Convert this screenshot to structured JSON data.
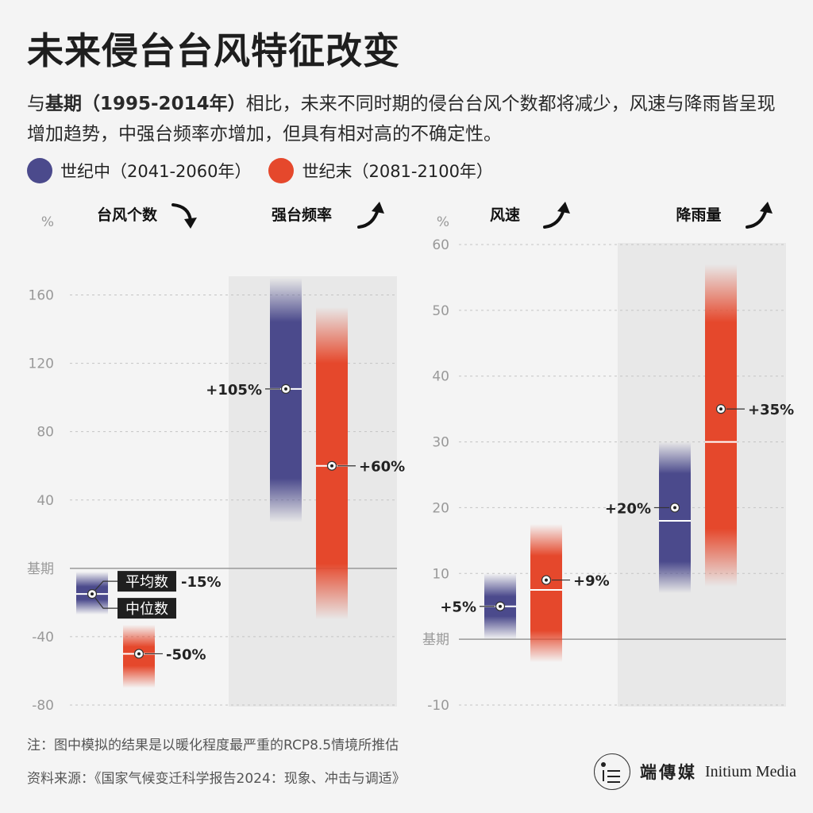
{
  "title": "未来侵台台风特征改变",
  "subtitle": {
    "part1": "与",
    "bold": "基期（1995-2014年）",
    "part2": "相比，未来不同时期的侵台台风个数都将减少，风速与降雨皆呈现增加趋势，中强台频率亦增加，但具有相对高的不确定性。"
  },
  "legend": [
    {
      "label": "世纪中（2041-2060年）",
      "color": "#4b4a8c"
    },
    {
      "label": "世纪末（2081-2100年）",
      "color": "#e5482c"
    }
  ],
  "note": "注：图中模拟的结果是以暖化程度最严重的RCP8.5情境所推估",
  "source": "资料来源：《国家气候变迁科学报告2024：现象、冲击与调适》",
  "brand": {
    "cn": "端傳媒",
    "en": "Initium Media"
  },
  "chart_data": [
    {
      "type": "range",
      "unit_label": "%",
      "baseline_label": "基期",
      "ylim": [
        -80,
        170
      ],
      "yticks": [
        -80,
        -40,
        0,
        40,
        80,
        120,
        160
      ],
      "tick_labels": [
        "-80",
        "-40",
        "基期",
        "40",
        "80",
        "120",
        "160"
      ],
      "groups": [
        {
          "label": "台风个数",
          "trend": "down",
          "shaded": false,
          "series": [
            {
              "period": "世纪中",
              "mean": -15,
              "median": -15,
              "low": -27,
              "high": -2,
              "value_label": "-15%"
            },
            {
              "period": "世纪末",
              "mean": -50,
              "median": -50,
              "low": -70,
              "high": -33,
              "value_label": "-50%"
            }
          ],
          "annotations": [
            "平均数",
            "中位数"
          ]
        },
        {
          "label": "强台频率",
          "trend": "up",
          "shaded": true,
          "series": [
            {
              "period": "世纪中",
              "mean": 105,
              "median": 105,
              "low": 27,
              "high": 170,
              "value_label": "+105%"
            },
            {
              "period": "世纪末",
              "mean": 60,
              "median": 60,
              "low": -30,
              "high": 153,
              "value_label": "+60%"
            }
          ]
        }
      ]
    },
    {
      "type": "range",
      "unit_label": "%",
      "baseline_label": "基期",
      "ylim": [
        -10,
        60
      ],
      "yticks": [
        -10,
        0,
        10,
        20,
        30,
        40,
        50,
        60
      ],
      "tick_labels": [
        "-10",
        "基期",
        "10",
        "20",
        "30",
        "40",
        "50",
        "60"
      ],
      "groups": [
        {
          "label": "风速",
          "trend": "up",
          "shaded": false,
          "series": [
            {
              "period": "世纪中",
              "mean": 5,
              "median": 5,
              "low": 0,
              "high": 10,
              "value_label": "+5%"
            },
            {
              "period": "世纪末",
              "mean": 9,
              "median": 7.5,
              "low": -3.5,
              "high": 17.5,
              "value_label": "+9%"
            }
          ]
        },
        {
          "label": "降雨量",
          "trend": "up",
          "shaded": true,
          "series": [
            {
              "period": "世纪中",
              "mean": 20,
              "median": 18,
              "low": 7,
              "high": 30,
              "value_label": "+20%"
            },
            {
              "period": "世纪末",
              "mean": 35,
              "median": 30,
              "low": 8,
              "high": 57,
              "value_label": "+35%"
            }
          ]
        }
      ]
    }
  ]
}
